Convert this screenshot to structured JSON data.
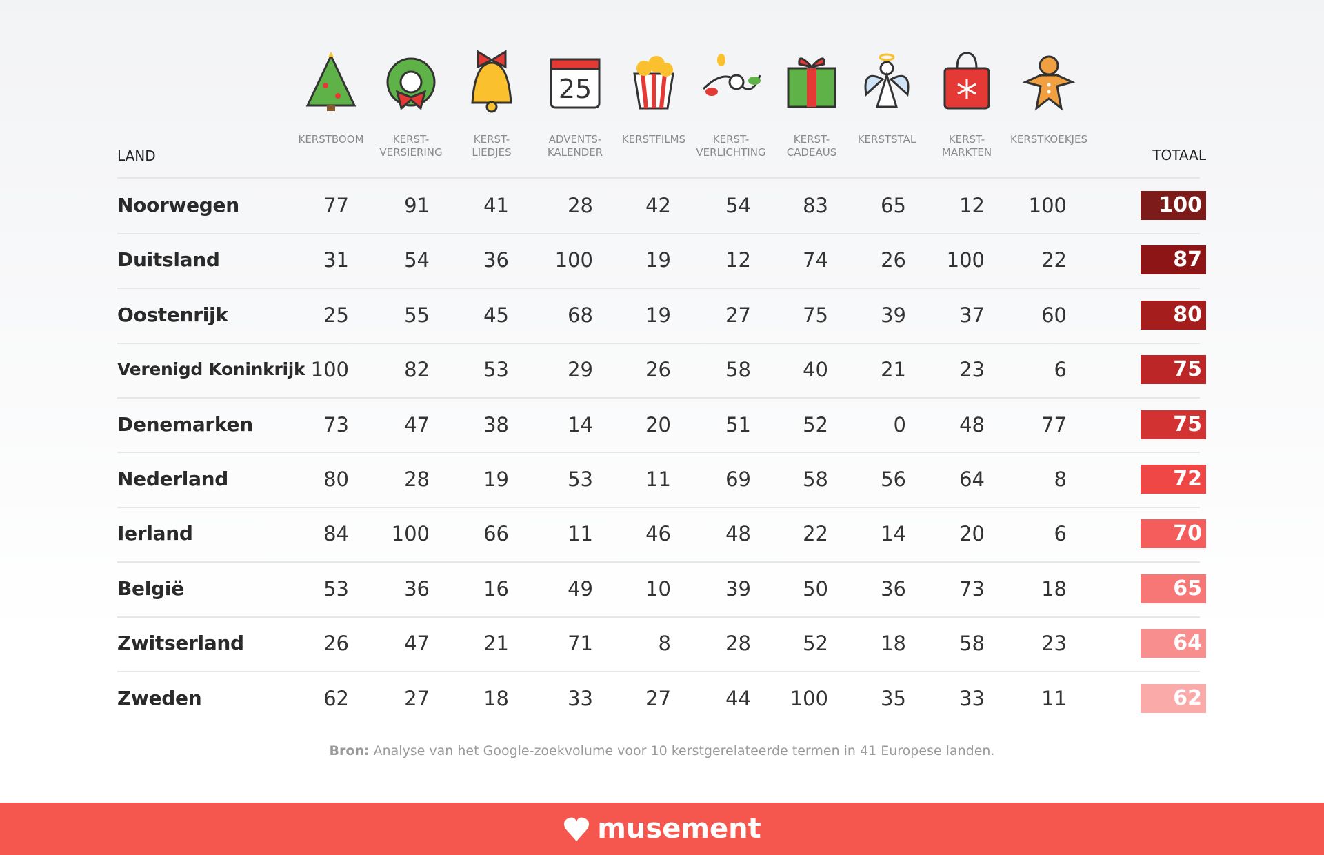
{
  "header": {
    "country_label": "LAND",
    "total_label": "TOTAAL",
    "columns": [
      "KERSTBOOM",
      "KERST-\nVERSIERING",
      "KERST-\nLIEDJES",
      "ADVENTS-\nKALENDER",
      "KERSTFILMS",
      "KERST-\nVERLICHTING",
      "KERST-\nCADEAUS",
      "KERSTSTAL",
      "KERST-\nMARKTEN",
      "KERSTKOEKJES"
    ],
    "calendar_day": "25"
  },
  "table": {
    "rows": [
      {
        "country": "Noorwegen",
        "values": [
          77,
          91,
          41,
          28,
          42,
          54,
          83,
          65,
          12,
          100
        ],
        "total": 100,
        "color": "#7d1b1b"
      },
      {
        "country": "Duitsland",
        "values": [
          31,
          54,
          36,
          100,
          19,
          12,
          74,
          26,
          100,
          22
        ],
        "total": 87,
        "color": "#8e1515"
      },
      {
        "country": "Oostenrijk",
        "values": [
          25,
          55,
          45,
          68,
          19,
          27,
          75,
          39,
          37,
          60
        ],
        "total": 80,
        "color": "#a51d1d"
      },
      {
        "country": "Verenigd Koninkrijk",
        "values": [
          100,
          82,
          53,
          29,
          26,
          58,
          40,
          21,
          23,
          6
        ],
        "total": 75,
        "color": "#bd2626"
      },
      {
        "country": "Denemarken",
        "values": [
          73,
          47,
          38,
          14,
          20,
          51,
          52,
          0,
          48,
          77
        ],
        "total": 75,
        "color": "#d33232"
      },
      {
        "country": "Nederland",
        "values": [
          80,
          28,
          19,
          53,
          11,
          69,
          58,
          56,
          64,
          8
        ],
        "total": 72,
        "color": "#ef4646"
      },
      {
        "country": "Ierland",
        "values": [
          84,
          100,
          66,
          11,
          46,
          48,
          22,
          14,
          20,
          6
        ],
        "total": 70,
        "color": "#f55d5d"
      },
      {
        "country": "België",
        "values": [
          53,
          36,
          16,
          49,
          10,
          39,
          50,
          36,
          73,
          18
        ],
        "total": 65,
        "color": "#f77777"
      },
      {
        "country": "Zwitserland",
        "values": [
          26,
          47,
          21,
          71,
          8,
          28,
          52,
          18,
          58,
          23
        ],
        "total": 64,
        "color": "#f98e8e"
      },
      {
        "country": "Zweden",
        "values": [
          62,
          27,
          18,
          33,
          27,
          44,
          100,
          35,
          33,
          11
        ],
        "total": 62,
        "color": "#fbaaaa"
      }
    ]
  },
  "source": {
    "label": "Bron:",
    "text": "Analyse van het Google-zoekvolume voor 10 kerstgerelateerde termen in 41 Europese landen."
  },
  "footer": {
    "brand": "musement"
  }
}
